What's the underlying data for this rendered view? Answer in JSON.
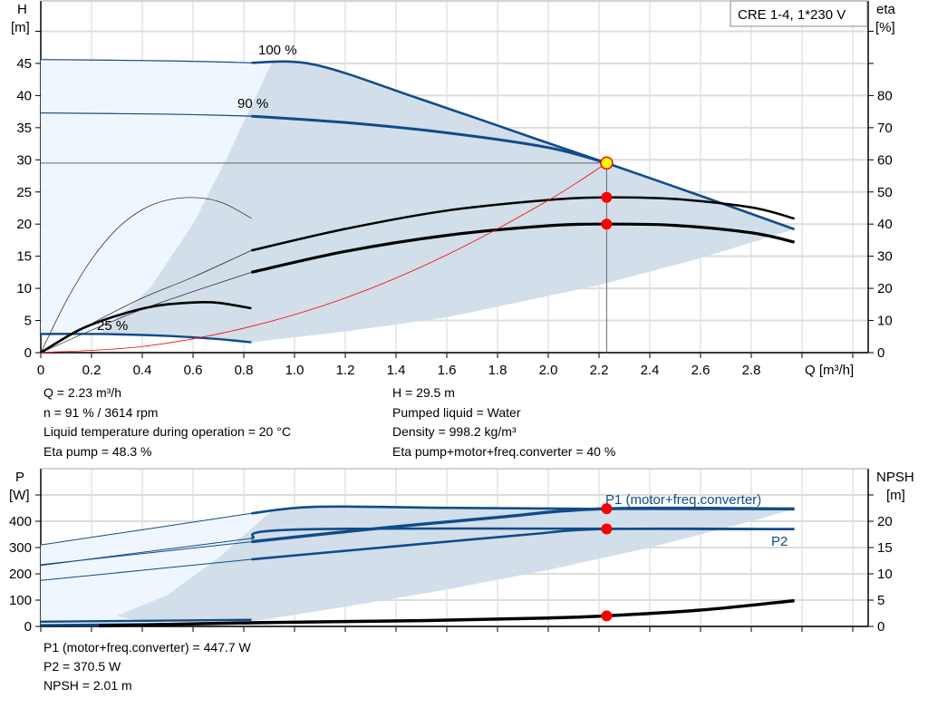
{
  "chart_data": [
    {
      "type": "line",
      "title": "CRE 1-4, 1*230 V",
      "xlabel": "Q [m³/h]",
      "ylabel_left": [
        "H",
        "[m]"
      ],
      "ylabel_right": [
        "eta",
        "[%]"
      ],
      "xlim": [
        0,
        3.2
      ],
      "ylim": [
        0,
        50
      ],
      "ylim_right": [
        0,
        100
      ],
      "grid": true,
      "x_ticks": [
        "0",
        "0.2",
        "0.4",
        "0.6",
        "0.8",
        "1.0",
        "1.2",
        "1.4",
        "1.6",
        "1.8",
        "2.0",
        "2.2",
        "2.4",
        "2.6",
        "2.8"
      ],
      "y_ticks": [
        "0",
        "5",
        "10",
        "15",
        "20",
        "25",
        "30",
        "35",
        "40",
        "45"
      ],
      "y_right_ticks": [
        "0",
        "10",
        "20",
        "30",
        "40",
        "50",
        "60",
        "70",
        "80"
      ],
      "curve_labels": {
        "speed_100": "100 %",
        "speed_90": "90 %",
        "speed_25": "25 %"
      },
      "colors": {
        "head": "#0f4c8a",
        "eta": "#000000",
        "system": "#ff0000",
        "region_dark": "#d0dce8",
        "region_light": "#eef6fd",
        "operating_point": "#ffff00",
        "marker": "#ff0000"
      },
      "series": [
        {
          "id": "H_100",
          "axis": "H",
          "points": [
            [
              0,
              45.6
            ],
            [
              0.5,
              45.4
            ],
            [
              0.83,
              45.1
            ],
            [
              1.08,
              44.8
            ],
            [
              1.5,
              39.4
            ],
            [
              2.0,
              32.6
            ],
            [
              2.23,
              29.5
            ],
            [
              2.6,
              24.4
            ],
            [
              2.97,
              19.2
            ]
          ]
        },
        {
          "id": "H_90",
          "axis": "H",
          "points": [
            [
              0,
              37.3
            ],
            [
              0.5,
              37.1
            ],
            [
              0.83,
              36.8
            ],
            [
              1.2,
              35.8
            ],
            [
              1.6,
              34.2
            ],
            [
              2.0,
              31.9
            ],
            [
              2.23,
              29.5
            ]
          ]
        },
        {
          "id": "H_25",
          "axis": "H",
          "points": [
            [
              0,
              2.9
            ],
            [
              0.23,
              2.9
            ],
            [
              0.5,
              2.6
            ],
            [
              0.7,
              2.1
            ],
            [
              0.83,
              1.6
            ]
          ]
        },
        {
          "id": "eta_pump_100",
          "axis": "eta",
          "points": [
            [
              0,
              0
            ],
            [
              0.2,
              9
            ],
            [
              0.4,
              17
            ],
            [
              0.6,
              23.5
            ],
            [
              0.83,
              31.8
            ],
            [
              1.2,
              38.5
            ],
            [
              1.6,
              44.2
            ],
            [
              2.0,
              47.5
            ],
            [
              2.23,
              48.3
            ],
            [
              2.5,
              47.8
            ],
            [
              2.8,
              45.2
            ],
            [
              2.97,
              41.7
            ]
          ]
        },
        {
          "id": "eta_total_100",
          "axis": "eta",
          "points": [
            [
              0,
              0
            ],
            [
              0.2,
              7
            ],
            [
              0.4,
              13.5
            ],
            [
              0.6,
              19
            ],
            [
              0.83,
              25
            ],
            [
              1.2,
              31.5
            ],
            [
              1.6,
              36.5
            ],
            [
              2.0,
              39.5
            ],
            [
              2.23,
              40
            ],
            [
              2.5,
              39.6
            ],
            [
              2.8,
              37.3
            ],
            [
              2.97,
              34.4
            ]
          ]
        },
        {
          "id": "eta_pump_25",
          "axis": "eta",
          "points": [
            [
              0,
              0
            ],
            [
              0.1,
              16
            ],
            [
              0.2,
              29
            ],
            [
              0.3,
              38.5
            ],
            [
              0.4,
              44.5
            ],
            [
              0.5,
              47.5
            ],
            [
              0.62,
              48.2
            ],
            [
              0.72,
              46.5
            ],
            [
              0.83,
              41.8
            ]
          ]
        },
        {
          "id": "eta_total_25",
          "axis": "eta",
          "points": [
            [
              0,
              0
            ],
            [
              0.15,
              7
            ],
            [
              0.3,
              11.5
            ],
            [
              0.45,
              14.5
            ],
            [
              0.6,
              15.6
            ],
            [
              0.7,
              15.5
            ],
            [
              0.83,
              13.8
            ]
          ]
        },
        {
          "id": "system",
          "axis": "H",
          "points": [
            [
              0,
              0
            ],
            [
              0.4,
              0.95
            ],
            [
              0.8,
              3.8
            ],
            [
              1.2,
              8.5
            ],
            [
              1.6,
              15.2
            ],
            [
              2.0,
              23.7
            ],
            [
              2.23,
              29.5
            ]
          ]
        }
      ],
      "region_dark": [
        [
          0.91,
          45.1
        ],
        [
          1.08,
          44.8
        ],
        [
          1.5,
          39.4
        ],
        [
          2.0,
          32.6
        ],
        [
          2.23,
          29.5
        ],
        [
          2.6,
          24.4
        ],
        [
          2.97,
          19.2
        ],
        [
          2.6,
          14.7
        ],
        [
          2.2,
          10.5
        ],
        [
          1.6,
          5.5
        ],
        [
          1.2,
          3.3
        ],
        [
          0.83,
          1.6
        ],
        [
          0.7,
          2.1
        ],
        [
          0.5,
          2.6
        ],
        [
          0.23,
          2.9
        ],
        [
          0.43,
          10
        ],
        [
          0.6,
          20
        ],
        [
          0.73,
          30
        ],
        [
          0.91,
          45.1
        ]
      ],
      "region_light": [
        [
          0,
          45.6
        ],
        [
          0.91,
          45.1
        ],
        [
          0.91,
          2.9
        ],
        [
          0,
          2.9
        ]
      ],
      "operating_point": {
        "Q": 2.23,
        "H": 29.5,
        "eta_pump": 48.3,
        "eta_total": 40
      }
    },
    {
      "type": "line",
      "ylabel_left": [
        "P",
        "[W]"
      ],
      "ylabel_right": [
        "NPSH",
        "[m]"
      ],
      "xlim": [
        0,
        3.2
      ],
      "ylim": [
        0,
        600
      ],
      "ylim_right": [
        0,
        30
      ],
      "grid": true,
      "y_ticks": [
        "0",
        "100",
        "200",
        "300",
        "400"
      ],
      "y_right_ticks": [
        "0",
        "5",
        "10",
        "15",
        "20"
      ],
      "curve_labels": {
        "P1": "P1 (motor+freq.converter)",
        "P2": "P2"
      },
      "series": [
        {
          "id": "P1_100",
          "axis": "P",
          "points": [
            [
              0,
              310
            ],
            [
              0.83,
              430
            ],
            [
              1.08,
              455
            ],
            [
              1.6,
              451
            ],
            [
              2.23,
              447
            ],
            [
              2.97,
              447
            ]
          ]
        },
        {
          "id": "P1_90",
          "axis": "P",
          "points": [
            [
              0,
              235
            ],
            [
              0.83,
              322
            ],
            [
              1.3,
              370
            ],
            [
              1.8,
              415
            ],
            [
              2.23,
              447.7
            ],
            [
              2.97,
              447
            ]
          ]
        },
        {
          "id": "P2_100",
          "axis": "P",
          "points": [
            [
              0,
              232
            ],
            [
              0.83,
              335
            ],
            [
              1.08,
              370
            ],
            [
              2.97,
              370
            ]
          ]
        },
        {
          "id": "P2_90",
          "axis": "P",
          "points": [
            [
              0,
              175
            ],
            [
              0.83,
              255
            ],
            [
              1.4,
              305
            ],
            [
              1.9,
              348
            ],
            [
              2.23,
              370.5
            ],
            [
              2.97,
              370
            ]
          ]
        },
        {
          "id": "P1_25",
          "axis": "P",
          "points": [
            [
              0,
              18
            ],
            [
              0.83,
              25
            ]
          ]
        },
        {
          "id": "P2_25",
          "axis": "P",
          "points": [
            [
              0,
              5
            ],
            [
              0.83,
              12
            ]
          ]
        },
        {
          "id": "NPSH",
          "axis": "NPSH",
          "points": [
            [
              0.23,
              0.1
            ],
            [
              0.83,
              0.7
            ],
            [
              1.5,
              1.1
            ],
            [
              2.0,
              1.6
            ],
            [
              2.23,
              2.01
            ],
            [
              2.6,
              3.1
            ],
            [
              2.97,
              4.9
            ]
          ]
        }
      ],
      "region_dark": [
        [
          0.91,
          440
        ],
        [
          1.08,
          455
        ],
        [
          1.6,
          451
        ],
        [
          2.23,
          447
        ],
        [
          2.97,
          447
        ],
        [
          2.8,
          400
        ],
        [
          2.4,
          300
        ],
        [
          2.0,
          215
        ],
        [
          1.6,
          140
        ],
        [
          1.2,
          75
        ],
        [
          0.83,
          18
        ],
        [
          0.6,
          22
        ],
        [
          0.4,
          18
        ],
        [
          0.3,
          40
        ],
        [
          0.5,
          120
        ],
        [
          0.7,
          260
        ],
        [
          0.91,
          440
        ]
      ],
      "region_light": [
        [
          0,
          310
        ],
        [
          0.91,
          440
        ],
        [
          0.91,
          5
        ],
        [
          0,
          5
        ]
      ],
      "operating_point": {
        "P1": 447.7,
        "P2": 370.5,
        "NPSH": 2.01
      }
    }
  ],
  "info": {
    "left": [
      "Q = 2.23 m³/h",
      "n = 91 % / 3614 rpm",
      "Liquid temperature during operation = 20 °C",
      "Eta pump = 48.3 %"
    ],
    "right": [
      "H = 29.5 m",
      "Pumped liquid = Water",
      "Density = 998.2 kg/m³",
      "Eta pump+motor+freq.converter = 40 %"
    ],
    "bottom": [
      "P1 (motor+freq.converter) = 447.7 W",
      "P2 = 370.5 W",
      "NPSH = 2.01 m"
    ]
  }
}
